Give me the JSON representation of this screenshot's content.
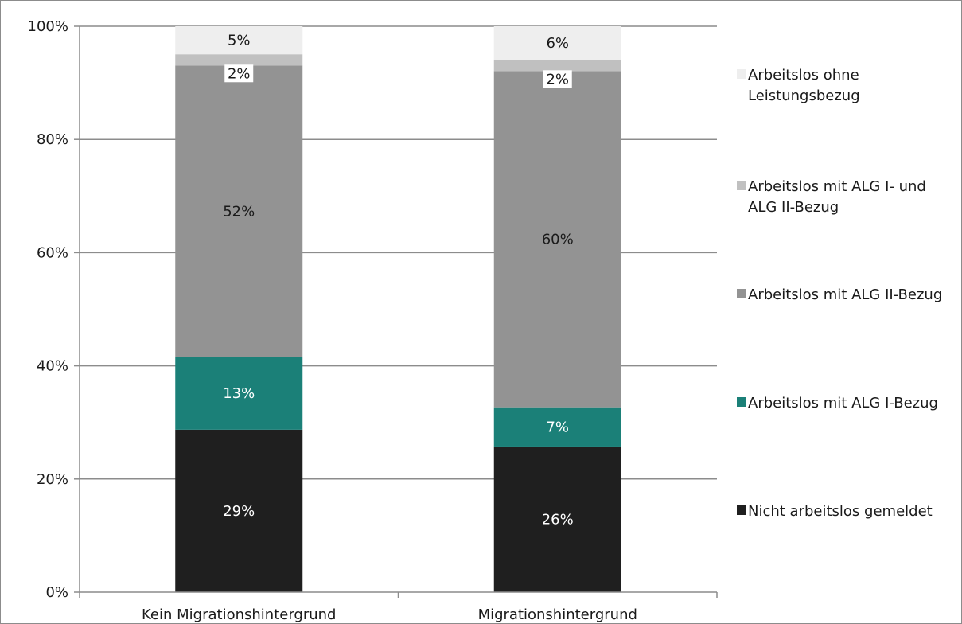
{
  "chart_data": {
    "type": "bar",
    "stacked": true,
    "normalized": true,
    "categories": [
      "Kein Migrationshintergrund",
      "Migrationshintergrund"
    ],
    "ylim": [
      0,
      100
    ],
    "yticks": [
      "0%",
      "20%",
      "40%",
      "60%",
      "80%",
      "100%"
    ],
    "grid": true,
    "legend_position": "right",
    "series": [
      {
        "name": "Nicht arbeitslos gemeldet",
        "color": "#1f1f1f",
        "label_color": "#ffffff",
        "values": [
          29,
          26
        ],
        "labels": [
          "29%",
          "26%"
        ]
      },
      {
        "name": "Arbeitslos mit ALG I-Bezug",
        "color": "#1b8078",
        "label_color": "#ffffff",
        "values": [
          13,
          7
        ],
        "labels": [
          "13%",
          "7%"
        ]
      },
      {
        "name": "Arbeitslos mit ALG II-Bezug",
        "color": "#939393",
        "label_color": "#1a1a1a",
        "values": [
          52,
          60
        ],
        "labels": [
          "52%",
          "60%"
        ]
      },
      {
        "name": "Arbeitslos mit ALG I- und ALG II-Bezug",
        "color": "#c0c0c0",
        "label_color": "#1a1a1a",
        "values": [
          2,
          2
        ],
        "labels": [
          "2%",
          "2%"
        ]
      },
      {
        "name": "Arbeitslos ohne Leistungsbezug",
        "color": "#eeeeee",
        "label_color": "#1a1a1a",
        "values": [
          5,
          6
        ],
        "labels": [
          "5%",
          "6%"
        ]
      }
    ],
    "legend": [
      {
        "lines": [
          "Arbeitslos ohne",
          "Leistungsbezug"
        ],
        "color": "#eeeeee"
      },
      {
        "lines": [
          "Arbeitslos mit ALG I- und",
          "ALG II-Bezug"
        ],
        "color": "#c0c0c0"
      },
      {
        "lines": [
          "Arbeitslos mit ALG II-Bezug"
        ],
        "color": "#939393"
      },
      {
        "lines": [
          "Arbeitslos mit ALG I-Bezug"
        ],
        "color": "#1b8078"
      },
      {
        "lines": [
          "Nicht arbeitslos gemeldet"
        ],
        "color": "#1f1f1f"
      }
    ]
  }
}
